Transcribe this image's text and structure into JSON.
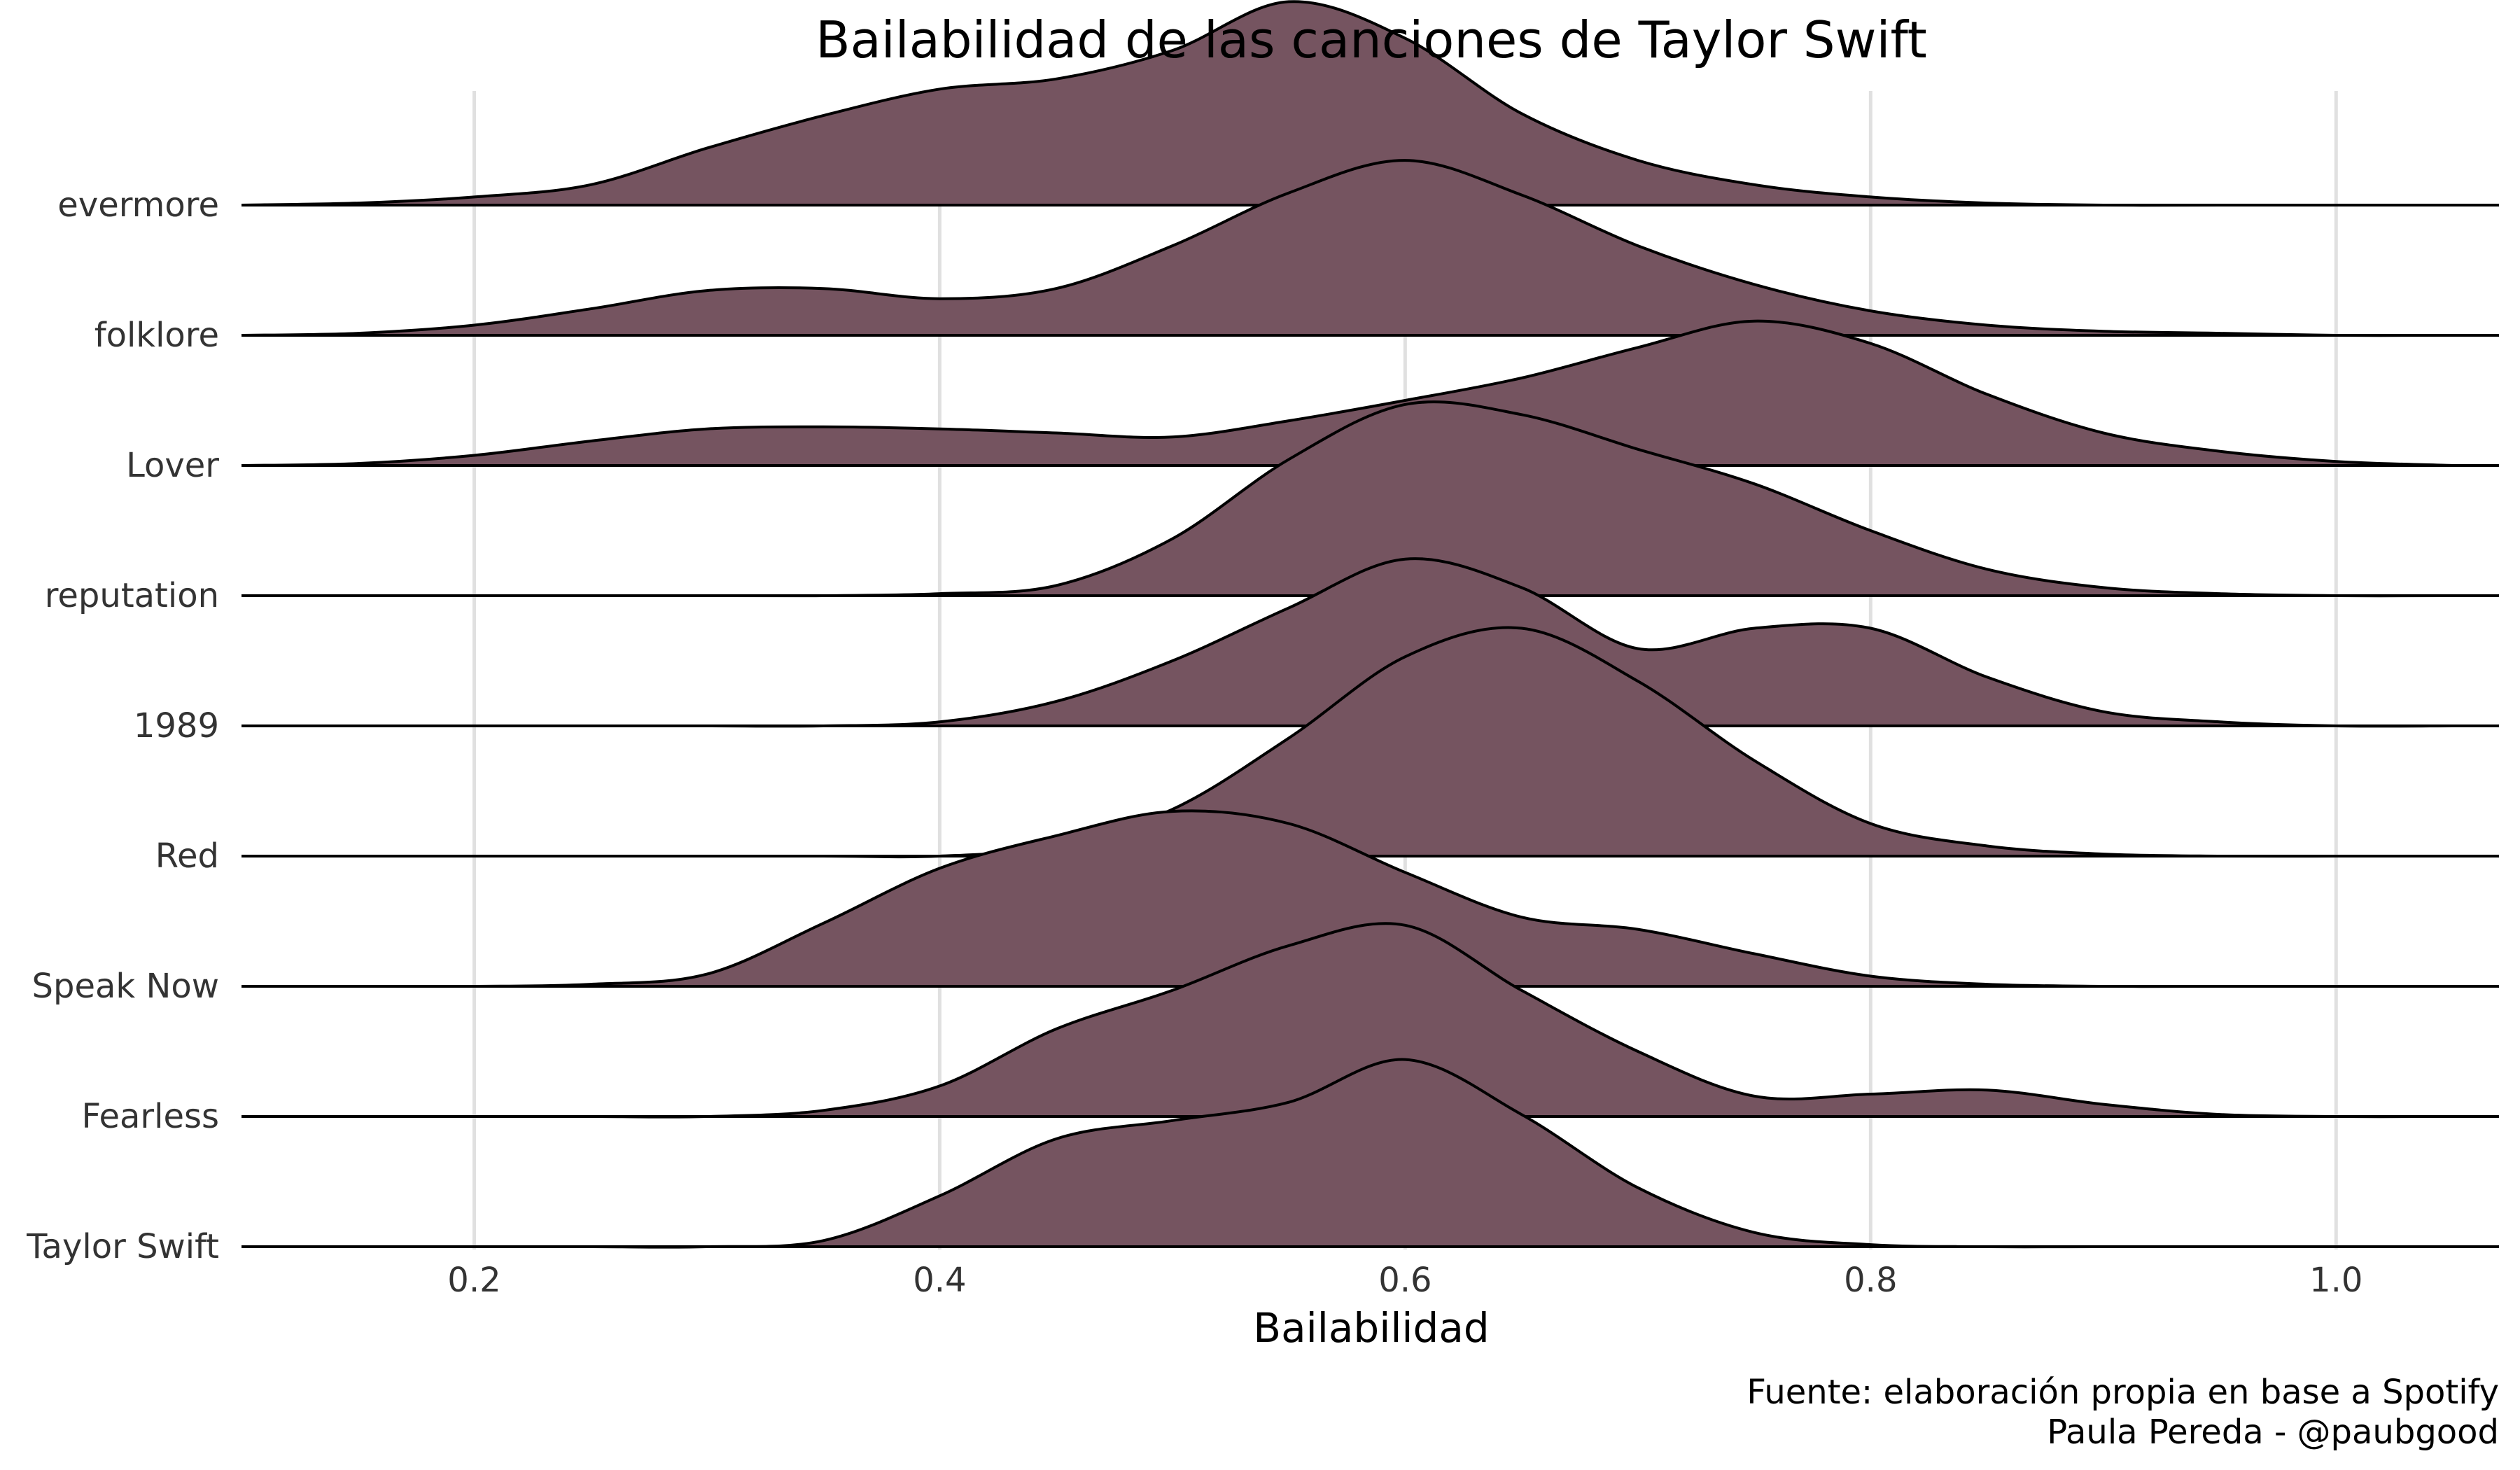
{
  "chart_data": {
    "type": "ridgeline",
    "title": "Bailabilidad de las canciones de Taylor Swift",
    "xlabel": "Bailabilidad",
    "ylabel": "",
    "xlim": [
      0.1,
      1.07
    ],
    "xticks": [
      0.2,
      0.4,
      0.6,
      0.8,
      1.0
    ],
    "xtick_labels": [
      "0.2",
      "0.4",
      "0.6",
      "0.8",
      "1.0"
    ],
    "fill_color": "#755460",
    "line_color": "#000000",
    "grid": "vertical major",
    "ridge_scale": 1.75,
    "density_x": [
      0.1,
      0.15,
      0.2,
      0.25,
      0.3,
      0.35,
      0.4,
      0.45,
      0.5,
      0.55,
      0.6,
      0.65,
      0.7,
      0.75,
      0.8,
      0.85,
      0.9,
      0.95,
      1.0,
      1.05
    ],
    "series": [
      {
        "name": "evermore",
        "density": [
          0,
          0.01,
          0.04,
          0.1,
          0.28,
          0.44,
          0.57,
          0.62,
          0.76,
          1.0,
          0.82,
          0.45,
          0.22,
          0.1,
          0.04,
          0.01,
          0,
          0,
          0,
          0
        ]
      },
      {
        "name": "folklore",
        "density": [
          0,
          0.01,
          0.05,
          0.13,
          0.22,
          0.23,
          0.18,
          0.23,
          0.44,
          0.7,
          0.86,
          0.69,
          0.44,
          0.25,
          0.12,
          0.05,
          0.02,
          0.01,
          0,
          0
        ]
      },
      {
        "name": "Lover",
        "density": [
          0,
          0.01,
          0.05,
          0.12,
          0.18,
          0.19,
          0.18,
          0.16,
          0.14,
          0.22,
          0.32,
          0.43,
          0.58,
          0.71,
          0.6,
          0.35,
          0.16,
          0.07,
          0.02,
          0
        ]
      },
      {
        "name": "reputation",
        "density": [
          0,
          0,
          0,
          0,
          0,
          0,
          0.01,
          0.05,
          0.28,
          0.67,
          0.94,
          0.89,
          0.72,
          0.55,
          0.32,
          0.13,
          0.04,
          0.01,
          0,
          0
        ]
      },
      {
        "name": "1989",
        "density": [
          0,
          0,
          0,
          0,
          0,
          0,
          0.02,
          0.12,
          0.32,
          0.58,
          0.82,
          0.68,
          0.38,
          0.48,
          0.48,
          0.24,
          0.07,
          0.02,
          0,
          0
        ]
      },
      {
        "name": "Red",
        "density": [
          0,
          0,
          0,
          0,
          0,
          0,
          0,
          0.05,
          0.23,
          0.58,
          0.98,
          1.12,
          0.86,
          0.47,
          0.16,
          0.05,
          0.01,
          0,
          0,
          0
        ]
      },
      {
        "name": "Speak Now",
        "density": [
          0,
          0,
          0,
          0.01,
          0.06,
          0.31,
          0.58,
          0.74,
          0.86,
          0.8,
          0.56,
          0.34,
          0.28,
          0.16,
          0.05,
          0.01,
          0,
          0,
          0,
          0
        ]
      },
      {
        "name": "Fearless",
        "density": [
          0,
          0,
          0,
          0,
          0,
          0.03,
          0.15,
          0.43,
          0.62,
          0.84,
          0.94,
          0.62,
          0.32,
          0.1,
          0.11,
          0.13,
          0.06,
          0.01,
          0,
          0
        ]
      },
      {
        "name": "Taylor Swift",
        "density": [
          0,
          0,
          0,
          0,
          0,
          0.03,
          0.25,
          0.53,
          0.62,
          0.71,
          0.92,
          0.65,
          0.29,
          0.07,
          0.01,
          0,
          0,
          0,
          0,
          0
        ]
      }
    ],
    "caption": [
      "Fuente: elaboración propia en base a Spotify",
      "Paula Pereda - @paubgood"
    ]
  }
}
